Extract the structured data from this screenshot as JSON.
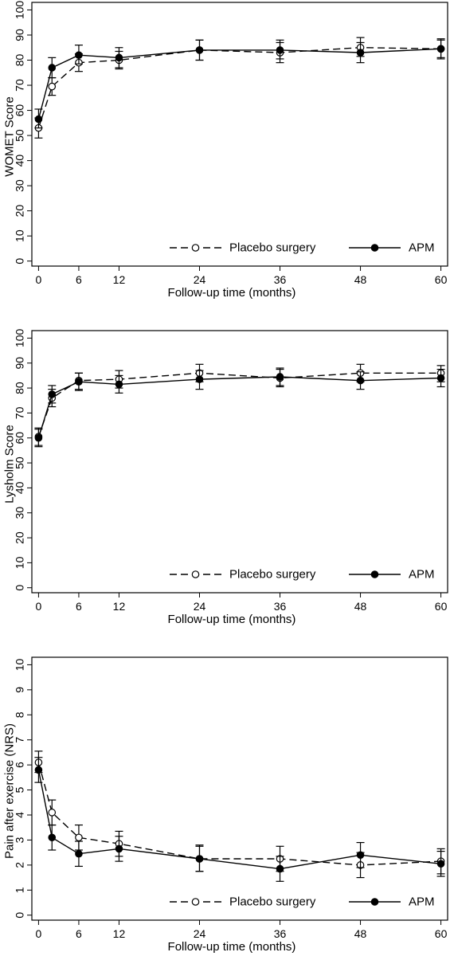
{
  "chart_data": [
    {
      "type": "line",
      "xlabel": "Follow-up time (months)",
      "ylabel": "WOMET Score",
      "xticks": [
        0,
        6,
        12,
        24,
        36,
        48,
        60
      ],
      "yticks": [
        0,
        10,
        20,
        30,
        40,
        50,
        60,
        70,
        80,
        90,
        100
      ],
      "xlim": [
        -1,
        61
      ],
      "ylim": [
        -2,
        103
      ],
      "x": [
        0,
        2,
        6,
        12,
        24,
        36,
        48,
        60
      ],
      "legend_position": "bottom-right",
      "series": [
        {
          "name": "Placebo surgery",
          "style": "dashed-open",
          "values": [
            53,
            69.5,
            79,
            80,
            84,
            83,
            85,
            84.5
          ],
          "ci_low": [
            49,
            66,
            75.5,
            76.5,
            80,
            79,
            81.5,
            81
          ],
          "ci_high": [
            57,
            73,
            82.5,
            83.5,
            88,
            87,
            89,
            88
          ]
        },
        {
          "name": "APM",
          "style": "solid-filled",
          "values": [
            56.5,
            77,
            82,
            81,
            84,
            84,
            83,
            84.5
          ],
          "ci_low": [
            53,
            73,
            78.5,
            77,
            80,
            80.5,
            79,
            80.5
          ],
          "ci_high": [
            60.5,
            81,
            86,
            85,
            88,
            88,
            87,
            88.5
          ]
        }
      ]
    },
    {
      "type": "line",
      "xlabel": "Follow-up time (months)",
      "ylabel": "Lysholm Score",
      "xticks": [
        0,
        6,
        12,
        24,
        36,
        48,
        60
      ],
      "yticks": [
        0,
        10,
        20,
        30,
        40,
        50,
        60,
        70,
        80,
        90,
        100
      ],
      "xlim": [
        -1,
        61
      ],
      "ylim": [
        -2,
        103
      ],
      "x": [
        0,
        2,
        6,
        12,
        24,
        36,
        48,
        60
      ],
      "legend_position": "bottom-right",
      "series": [
        {
          "name": "Placebo surgery",
          "style": "dashed-open",
          "values": [
            60.5,
            76,
            83,
            83.5,
            86,
            84,
            86,
            86
          ],
          "ci_low": [
            57,
            72.5,
            79.5,
            80,
            82.5,
            80.5,
            82.5,
            82.5
          ],
          "ci_high": [
            64,
            79.5,
            86,
            87,
            89.5,
            87.5,
            89.5,
            89
          ]
        },
        {
          "name": "APM",
          "style": "solid-filled",
          "values": [
            60,
            77.5,
            82.5,
            81.5,
            83.5,
            84.5,
            83,
            84
          ],
          "ci_low": [
            56.5,
            74,
            79,
            78,
            79.5,
            81,
            79.5,
            80.5
          ],
          "ci_high": [
            63.5,
            81,
            86,
            85,
            87,
            88,
            86.5,
            87.5
          ]
        }
      ]
    },
    {
      "type": "line",
      "xlabel": "Follow-up time (months)",
      "ylabel": "Pain after exercise (NRS)",
      "xticks": [
        0,
        6,
        12,
        24,
        36,
        48,
        60
      ],
      "yticks": [
        0,
        1,
        2,
        3,
        4,
        5,
        6,
        7,
        8,
        9,
        10
      ],
      "xlim": [
        -1,
        61
      ],
      "ylim": [
        -0.2,
        10.3
      ],
      "x": [
        0,
        2,
        6,
        12,
        24,
        36,
        48,
        60
      ],
      "legend_position": "bottom-right",
      "series": [
        {
          "name": "Placebo surgery",
          "style": "dashed-open",
          "values": [
            6.1,
            4.1,
            3.1,
            2.85,
            2.25,
            2.25,
            2.0,
            2.15
          ],
          "ci_low": [
            5.7,
            3.6,
            2.6,
            2.35,
            1.75,
            1.75,
            1.5,
            1.65
          ],
          "ci_high": [
            6.55,
            4.6,
            3.6,
            3.35,
            2.75,
            2.75,
            2.5,
            2.65
          ]
        },
        {
          "name": "APM",
          "style": "solid-filled",
          "values": [
            5.8,
            3.1,
            2.45,
            2.65,
            2.25,
            1.85,
            2.4,
            2.05
          ],
          "ci_low": [
            5.3,
            2.6,
            1.95,
            2.15,
            1.75,
            1.35,
            1.9,
            1.55
          ],
          "ci_high": [
            6.3,
            3.6,
            2.95,
            3.15,
            2.8,
            2.35,
            2.9,
            2.55
          ]
        }
      ]
    }
  ]
}
